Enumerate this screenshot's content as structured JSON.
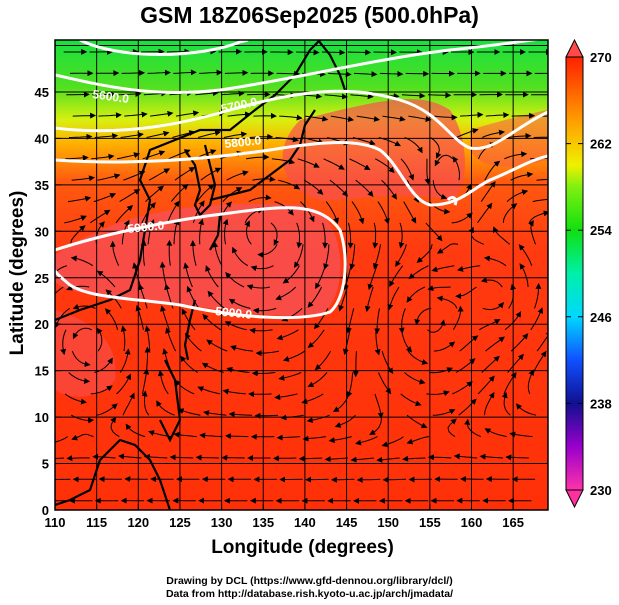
{
  "title": "GSM 18Z06Sep2025 (500.0hPa)",
  "xlabel": "Longitude (degrees)",
  "ylabel": "Latitude  (degrees)",
  "x_ticks": [
    "110",
    "115",
    "120",
    "125",
    "130",
    "135",
    "140",
    "145",
    "150",
    "155",
    "160",
    "165"
  ],
  "y_ticks": [
    "0",
    "5",
    "10",
    "15",
    "20",
    "25",
    "30",
    "35",
    "40",
    "45"
  ],
  "colorbar": {
    "ticks": [
      "270",
      "262",
      "254",
      "246",
      "238",
      "230"
    ],
    "range": [
      230,
      270
    ],
    "colors": [
      "#ff3399",
      "#8800cc",
      "#1010a0",
      "#1060ff",
      "#00e0ff",
      "#00f0a0",
      "#10e010",
      "#e8f010",
      "#ffa000",
      "#ff2000"
    ]
  },
  "contours": {
    "c5600": "5600.0",
    "c5700": "5700.0",
    "c5800": "5800.0",
    "c5900a": "5900.0",
    "c5900b": "5900.0"
  },
  "credits": {
    "drawing": "Drawing by DCL (https://www.gfd-dennou.org/library/dcl/)",
    "data": "Data from http://database.rish.kyoto-u.ac.jp/arch/jmadata/"
  }
}
